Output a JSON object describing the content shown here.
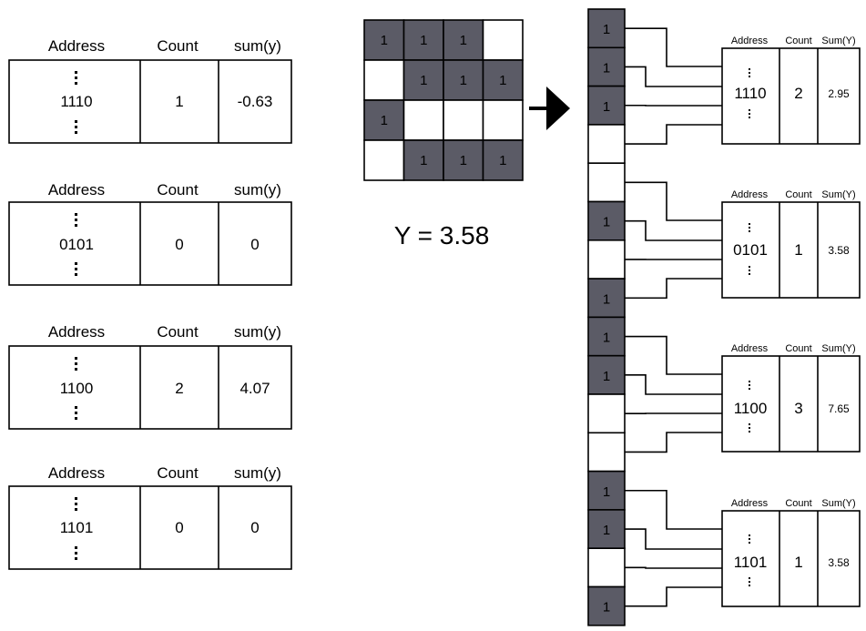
{
  "left_tables": [
    {
      "headers": {
        "address": "Address",
        "count": "Count",
        "sum": "sum(y)"
      },
      "address": "1110",
      "count": "1",
      "sum": "-0.63"
    },
    {
      "headers": {
        "address": "Address",
        "count": "Count",
        "sum": "sum(y)"
      },
      "address": "0101",
      "count": "0",
      "sum": "0"
    },
    {
      "headers": {
        "address": "Address",
        "count": "Count",
        "sum": "sum(y)"
      },
      "address": "1100",
      "count": "2",
      "sum": "4.07"
    },
    {
      "headers": {
        "address": "Address",
        "count": "Count",
        "sum": "sum(y)"
      },
      "address": "1101",
      "count": "0",
      "sum": "0"
    }
  ],
  "input_grid": {
    "cells": [
      [
        "1",
        "1",
        "1",
        ""
      ],
      [
        "",
        "1",
        "1",
        "1"
      ],
      [
        "1",
        "",
        "",
        ""
      ],
      [
        "",
        "1",
        "1",
        "1"
      ]
    ],
    "y_label": "Y = 3.58"
  },
  "bit_column": [
    "1",
    "1",
    "1",
    "",
    "",
    "1",
    "",
    "1",
    "1",
    "1",
    "",
    "",
    "1",
    "1",
    "",
    "1"
  ],
  "right_tables": [
    {
      "headers": {
        "address": "Address",
        "count": "Count",
        "sum": "Sum(Y)"
      },
      "address": "1110",
      "count": "2",
      "sum": "2.95"
    },
    {
      "headers": {
        "address": "Address",
        "count": "Count",
        "sum": "Sum(Y)"
      },
      "address": "0101",
      "count": "1",
      "sum": "3.58"
    },
    {
      "headers": {
        "address": "Address",
        "count": "Count",
        "sum": "Sum(Y)"
      },
      "address": "1100",
      "count": "3",
      "sum": "7.65"
    },
    {
      "headers": {
        "address": "Address",
        "count": "Count",
        "sum": "Sum(Y)"
      },
      "address": "1101",
      "count": "1",
      "sum": "3.58"
    }
  ],
  "colors": {
    "filled": "#5b5b66",
    "line": "#000000",
    "background": "#ffffff"
  }
}
